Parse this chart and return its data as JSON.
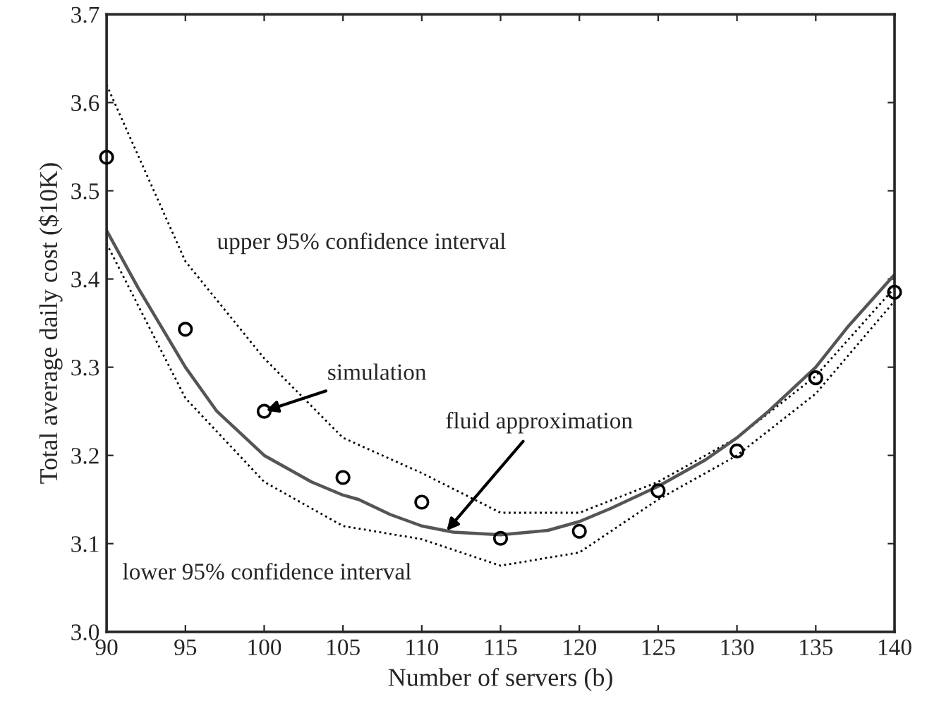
{
  "chart_data": {
    "type": "line",
    "xlabel": "Number of servers (b)",
    "ylabel": "Total average daily cost ($10K)",
    "xlim": [
      90,
      140
    ],
    "xticks": [
      90,
      95,
      100,
      105,
      110,
      115,
      120,
      125,
      130,
      135,
      140
    ],
    "ylim": [
      3.0,
      3.7
    ],
    "yticks": [
      {
        "value": 3.0,
        "label": "3.0"
      },
      3.1,
      3.2,
      3.3,
      3.4,
      3.5,
      3.6,
      3.7
    ],
    "grid": false,
    "legend": false,
    "series": [
      {
        "line_style": "dotted",
        "color": "#000000",
        "x": [
          90,
          95,
          100,
          105,
          110,
          115,
          120,
          125,
          130,
          135,
          140
        ],
        "values": [
          3.62,
          3.42,
          3.31,
          3.22,
          3.18,
          3.135,
          3.135,
          3.17,
          3.22,
          3.29,
          3.39
        ]
      },
      {
        "line_style": "dotted",
        "color": "#000000",
        "x": [
          90,
          95,
          100,
          105,
          110,
          115,
          120,
          125,
          130,
          135,
          140
        ],
        "values": [
          3.44,
          3.265,
          3.17,
          3.12,
          3.105,
          3.075,
          3.09,
          3.15,
          3.2,
          3.27,
          3.375
        ]
      },
      {
        "line_style": "solid",
        "color": "#555555",
        "x": [
          90,
          92,
          95,
          97,
          100,
          103,
          105,
          106,
          108,
          110,
          112,
          115,
          118,
          120,
          122,
          125,
          128,
          130,
          132,
          135,
          137,
          140
        ],
        "values": [
          3.455,
          3.39,
          3.3,
          3.25,
          3.2,
          3.17,
          3.155,
          3.15,
          3.133,
          3.12,
          3.113,
          3.11,
          3.115,
          3.125,
          3.14,
          3.165,
          3.195,
          3.22,
          3.25,
          3.3,
          3.345,
          3.405
        ]
      },
      {
        "type": "scatter",
        "marker": "circle",
        "color": "#000000",
        "x": [
          90,
          95,
          100,
          105,
          110,
          115,
          120,
          125,
          130,
          135,
          140
        ],
        "values": [
          3.538,
          3.343,
          3.25,
          3.175,
          3.147,
          3.106,
          3.114,
          3.16,
          3.205,
          3.288,
          3.385
        ]
      }
    ],
    "annotations": [
      "upper 95% confidence interval",
      "lower 95% confidence interval",
      {
        "text": "simulation",
        "x": 100,
        "y": 3.25
      },
      {
        "text": "fluid approximation",
        "x": 111.5,
        "y": 3.113
      }
    ]
  }
}
